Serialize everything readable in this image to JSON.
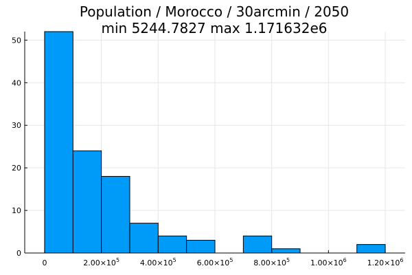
{
  "chart_data": {
    "type": "bar",
    "title_lines": [
      "Population / Morocco / 30arcmin / 2050",
      "min 5244.7827  max 1.171632e6"
    ],
    "xlabel": "",
    "ylabel": "",
    "x_scale": "linear",
    "xlim": [
      -70000,
      1270000
    ],
    "ylim": [
      0,
      52
    ],
    "bins": [
      {
        "start": 0,
        "end": 100000,
        "count": 52
      },
      {
        "start": 100000,
        "end": 200000,
        "count": 24
      },
      {
        "start": 200000,
        "end": 300000,
        "count": 18
      },
      {
        "start": 300000,
        "end": 400000,
        "count": 7
      },
      {
        "start": 400000,
        "end": 500000,
        "count": 4
      },
      {
        "start": 500000,
        "end": 600000,
        "count": 3
      },
      {
        "start": 600000,
        "end": 700000,
        "count": 0
      },
      {
        "start": 700000,
        "end": 800000,
        "count": 4
      },
      {
        "start": 800000,
        "end": 900000,
        "count": 1
      },
      {
        "start": 900000,
        "end": 1000000,
        "count": 0
      },
      {
        "start": 1000000,
        "end": 1100000,
        "count": 0
      },
      {
        "start": 1100000,
        "end": 1200000,
        "count": 2
      }
    ],
    "x_ticks": [
      {
        "value": 0,
        "mantissa": "0",
        "exp": ""
      },
      {
        "value": 200000,
        "mantissa": "2.00×10",
        "exp": "5"
      },
      {
        "value": 400000,
        "mantissa": "4.00×10",
        "exp": "5"
      },
      {
        "value": 600000,
        "mantissa": "6.00×10",
        "exp": "5"
      },
      {
        "value": 800000,
        "mantissa": "8.00×10",
        "exp": "5"
      },
      {
        "value": 1000000,
        "mantissa": "1.00×10",
        "exp": "6"
      },
      {
        "value": 1200000,
        "mantissa": "1.20×10",
        "exp": "6"
      }
    ],
    "y_ticks": [
      {
        "value": 0,
        "label": "0"
      },
      {
        "value": 10,
        "label": "10"
      },
      {
        "value": 20,
        "label": "20"
      },
      {
        "value": 30,
        "label": "30"
      },
      {
        "value": 40,
        "label": "40"
      },
      {
        "value": 50,
        "label": "50"
      }
    ],
    "grid": true,
    "legend": "none",
    "colors": {
      "bar_fill": "#009af9",
      "bar_stroke": "#000000",
      "grid": "#e6e6e6",
      "axis": "#000000"
    }
  }
}
